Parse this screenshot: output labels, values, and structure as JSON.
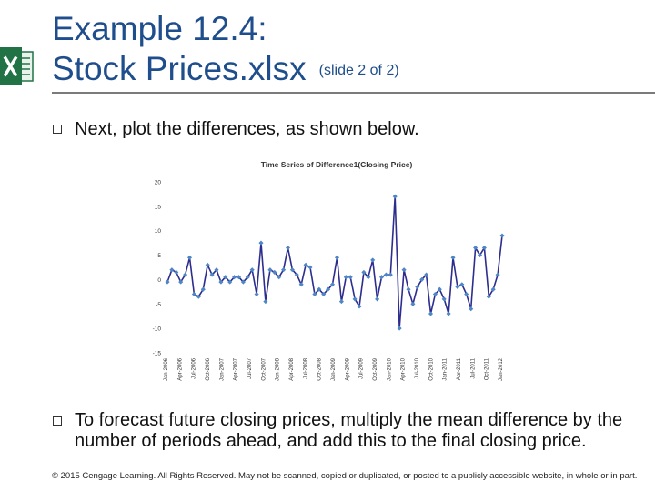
{
  "slide": {
    "title_line1": "Example 12.4:",
    "title_line2": "Stock Prices.xlsx",
    "title_note": "(slide 2 of 2)",
    "bullets": [
      "Next, plot the differences, as shown below.",
      "To forecast future closing prices, multiply the mean difference by the number of periods ahead, and add this to the final closing price."
    ],
    "footer": "© 2015 Cengage Learning. All Rights Reserved. May not be scanned, copied or duplicated, or posted to a publicly accessible website, in whole or in part.",
    "icon": "excel-icon",
    "accent_color": "#1f4e8c",
    "series_color": "#2d2d8f",
    "marker_color": "#4f86c6"
  },
  "chart_data": {
    "type": "line",
    "title": "Time Series of Difference1(Closing Price)",
    "ylim": [
      -15,
      20
    ],
    "yticks": [
      "20",
      "15",
      "10",
      "5",
      "0",
      "-5",
      "-10",
      "-15"
    ],
    "ytick_values": [
      20,
      15,
      10,
      5,
      0,
      -5,
      -10,
      -15
    ],
    "xtick_labels": [
      "Jan-2006",
      "Apr-2006",
      "Jul-2006",
      "Oct-2006",
      "Jan-2007",
      "Apr-2007",
      "Jul-2007",
      "Oct-2007",
      "Jan-2008",
      "Apr-2008",
      "Jul-2008",
      "Oct-2008",
      "Jan-2009",
      "Apr-2009",
      "Jul-2009",
      "Oct-2009",
      "Jan-2010",
      "Apr-2010",
      "Jul-2010",
      "Oct-2010",
      "Jan-2011",
      "Apr-2011",
      "Jul-2011",
      "Oct-2011",
      "Jan-2012"
    ],
    "grid": false,
    "legend": "none",
    "values": [
      -0.5,
      2,
      1.5,
      -0.5,
      1,
      4.5,
      -3,
      -3.5,
      -2,
      3,
      1,
      2,
      -0.5,
      0.5,
      -0.5,
      0.5,
      0.5,
      -0.5,
      0.5,
      2,
      -3,
      7.5,
      -4.5,
      2,
      1.5,
      0.5,
      2,
      6.5,
      2,
      1,
      -1,
      3,
      2.5,
      -3,
      -2,
      -3,
      -2,
      -1,
      4.5,
      -4.5,
      0.5,
      0.5,
      -4,
      -5.5,
      1.5,
      0.5,
      4,
      -4,
      0.5,
      1,
      1,
      17,
      -10,
      2,
      -2,
      -5,
      -1.5,
      0,
      1,
      -7,
      -3,
      -2,
      -4,
      -7,
      4.5,
      -1.5,
      -1,
      -3,
      -6,
      6.5,
      5,
      6.5,
      -3.5,
      -2,
      1,
      9
    ]
  }
}
